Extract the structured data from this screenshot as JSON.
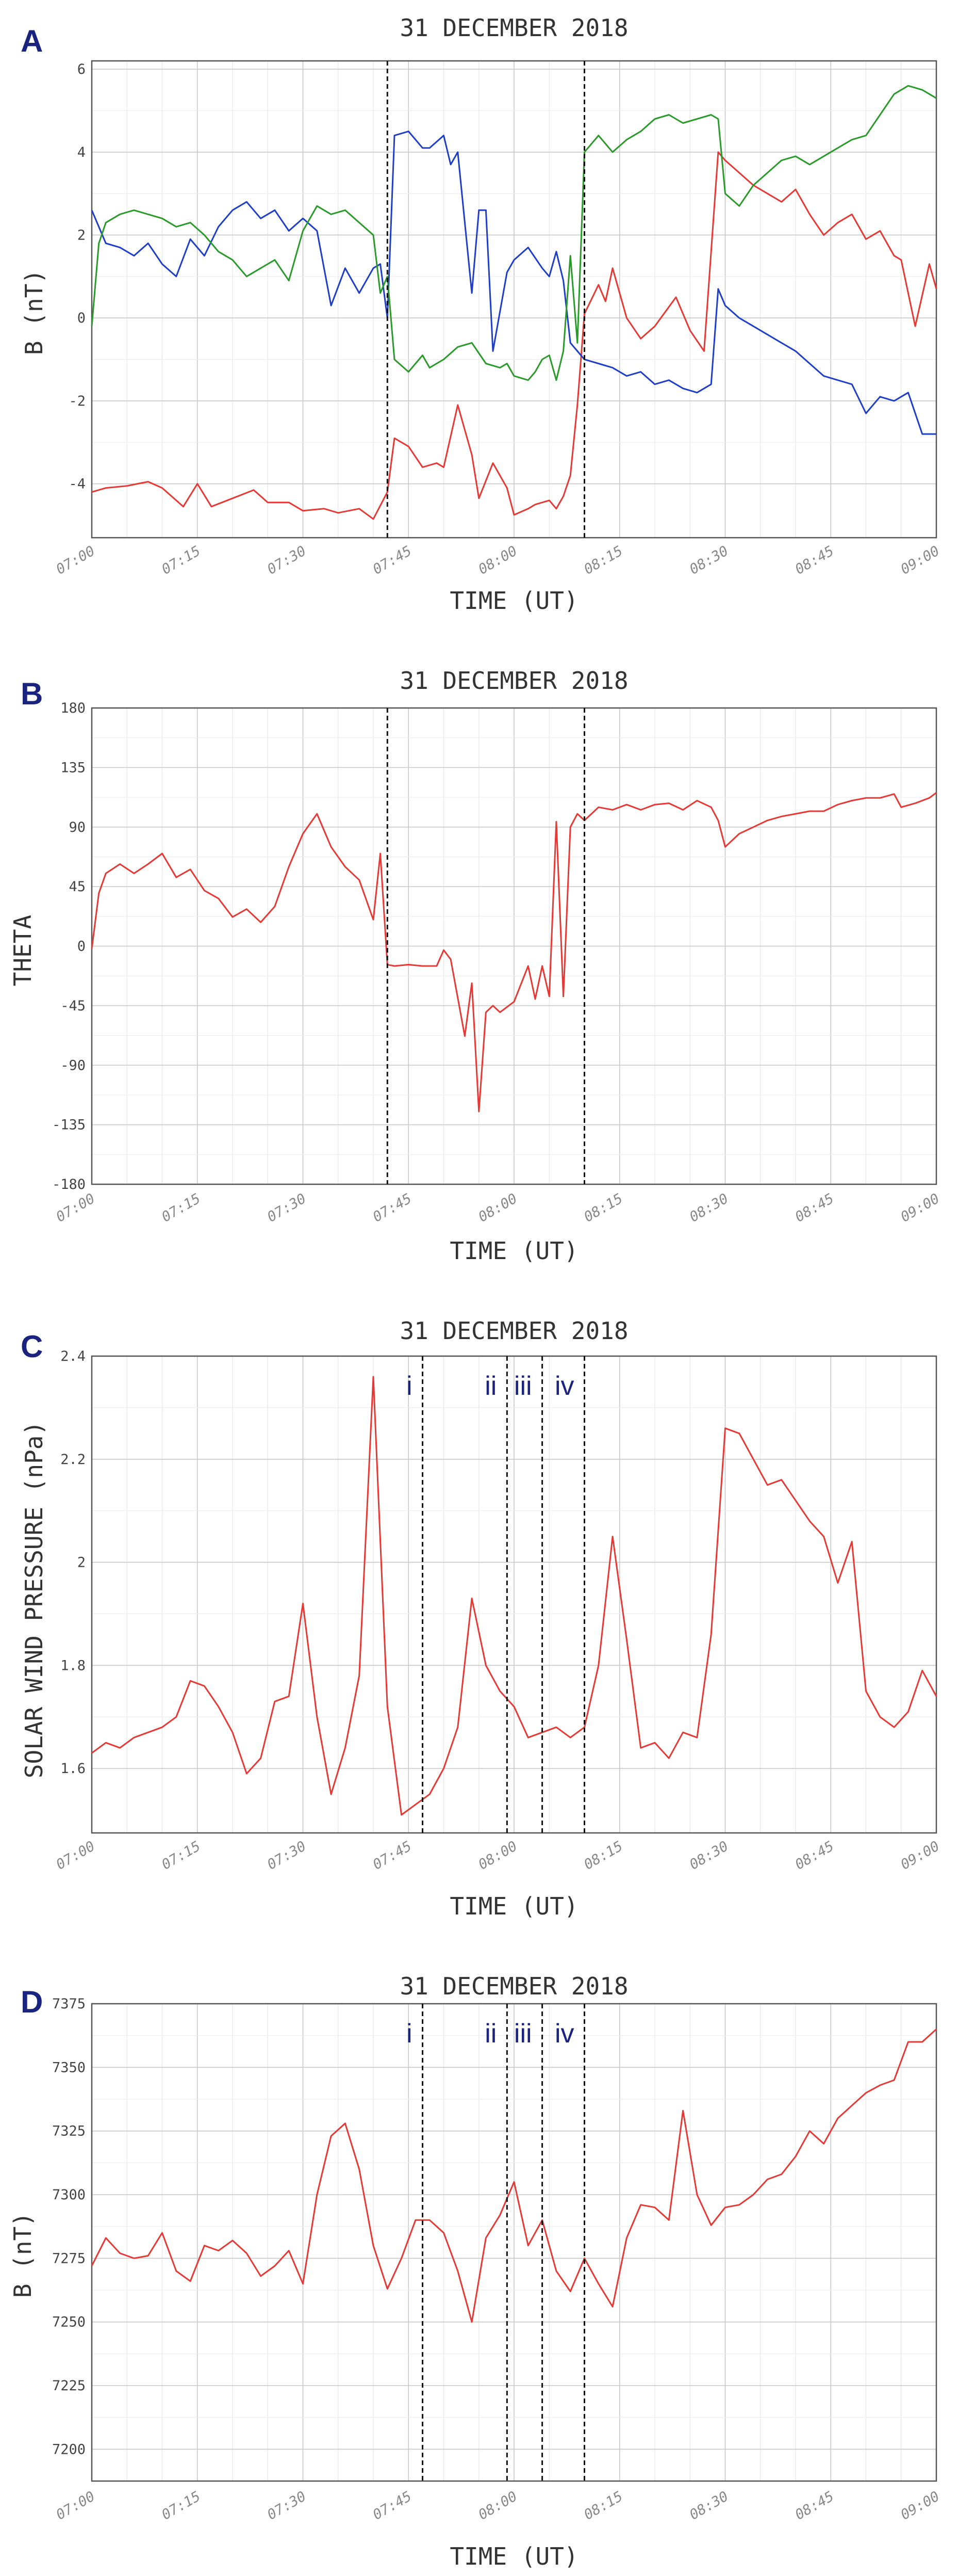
{
  "chart_data": [
    {
      "panel": "A",
      "type": "line",
      "title": "31 DECEMBER 2018",
      "xlabel": "TIME (UT)",
      "ylabel": "B (nT)",
      "xlim": [
        "07:00",
        "09:00"
      ],
      "ylim": [
        -5.3,
        6.2
      ],
      "yticks": [
        -4,
        -2,
        0,
        2,
        4,
        6
      ],
      "xticks": [
        "07:00",
        "07:15",
        "07:30",
        "07:45",
        "08:00",
        "08:15",
        "08:30",
        "08:45",
        "09:00"
      ],
      "grid": true,
      "vlines": [
        "07:42",
        "08:10"
      ],
      "series": [
        {
          "color": "#e53935",
          "x": [
            "07:00",
            "07:02",
            "07:05",
            "07:08",
            "07:10",
            "07:13",
            "07:15",
            "07:17",
            "07:20",
            "07:23",
            "07:25",
            "07:28",
            "07:30",
            "07:33",
            "07:35",
            "07:38",
            "07:40",
            "07:42",
            "07:43",
            "07:45",
            "07:47",
            "07:49",
            "07:50",
            "07:52",
            "07:54",
            "07:55",
            "07:57",
            "07:59",
            "08:00",
            "08:02",
            "08:03",
            "08:05",
            "08:06",
            "08:07",
            "08:08",
            "08:09",
            "08:10",
            "08:12",
            "08:13",
            "08:14",
            "08:16",
            "08:18",
            "08:20",
            "08:23",
            "08:25",
            "08:27",
            "08:29",
            "08:30",
            "08:32",
            "08:34",
            "08:36",
            "08:38",
            "08:40",
            "08:42",
            "08:44",
            "08:46",
            "08:48",
            "08:50",
            "08:52",
            "08:54",
            "08:55",
            "08:57",
            "08:59",
            "09:00"
          ],
          "values": [
            -4.2,
            -4.1,
            -4.05,
            -3.95,
            -4.1,
            -4.55,
            -4.0,
            -4.55,
            -4.35,
            -4.15,
            -4.45,
            -4.45,
            -4.65,
            -4.6,
            -4.7,
            -4.6,
            -4.85,
            -4.2,
            -2.9,
            -3.1,
            -3.6,
            -3.5,
            -3.6,
            -2.1,
            -3.3,
            -4.35,
            -3.5,
            -4.1,
            -4.75,
            -4.6,
            -4.5,
            -4.4,
            -4.6,
            -4.3,
            -3.8,
            -2.1,
            0.1,
            0.8,
            0.4,
            1.2,
            0.0,
            -0.5,
            -0.2,
            0.5,
            -0.3,
            -0.8,
            4.0,
            3.8,
            3.5,
            3.2,
            3.0,
            2.8,
            3.1,
            2.5,
            2.0,
            2.3,
            2.5,
            1.9,
            2.1,
            1.5,
            1.4,
            -0.2,
            1.3,
            0.7
          ]
        },
        {
          "color": "#1e3ec8",
          "x": [
            "07:00",
            "07:02",
            "07:04",
            "07:06",
            "07:08",
            "07:10",
            "07:12",
            "07:14",
            "07:16",
            "07:18",
            "07:20",
            "07:22",
            "07:24",
            "07:26",
            "07:28",
            "07:30",
            "07:32",
            "07:34",
            "07:36",
            "07:38",
            "07:40",
            "07:41",
            "07:42",
            "07:43",
            "07:45",
            "07:47",
            "07:48",
            "07:50",
            "07:51",
            "07:52",
            "07:54",
            "07:55",
            "07:56",
            "07:57",
            "07:59",
            "08:00",
            "08:02",
            "08:04",
            "08:05",
            "08:06",
            "08:07",
            "08:08",
            "08:10",
            "08:12",
            "08:14",
            "08:16",
            "08:18",
            "08:20",
            "08:22",
            "08:24",
            "08:26",
            "08:28",
            "08:29",
            "08:30",
            "08:32",
            "08:34",
            "08:36",
            "08:38",
            "08:40",
            "08:42",
            "08:44",
            "08:46",
            "08:48",
            "08:50",
            "08:52",
            "08:54",
            "08:56",
            "08:58",
            "09:00"
          ],
          "values": [
            2.6,
            1.8,
            1.7,
            1.5,
            1.8,
            1.3,
            1.0,
            1.9,
            1.5,
            2.2,
            2.6,
            2.8,
            2.4,
            2.6,
            2.1,
            2.4,
            2.1,
            0.3,
            1.2,
            0.6,
            1.2,
            1.3,
            0.0,
            4.4,
            4.5,
            4.1,
            4.1,
            4.4,
            3.7,
            4.0,
            0.6,
            2.6,
            2.6,
            -0.8,
            1.1,
            1.4,
            1.7,
            1.2,
            1.0,
            1.6,
            0.9,
            -0.6,
            -1.0,
            -1.1,
            -1.2,
            -1.4,
            -1.3,
            -1.6,
            -1.5,
            -1.7,
            -1.8,
            -1.6,
            0.7,
            0.3,
            0.0,
            -0.2,
            -0.4,
            -0.6,
            -0.8,
            -1.1,
            -1.4,
            -1.5,
            -1.6,
            -2.3,
            -1.9,
            -2.0,
            -1.8,
            -2.8,
            -2.8
          ]
        },
        {
          "color": "#2a9a2a",
          "x": [
            "07:00",
            "07:01",
            "07:02",
            "07:04",
            "07:06",
            "07:08",
            "07:10",
            "07:12",
            "07:14",
            "07:16",
            "07:18",
            "07:20",
            "07:22",
            "07:24",
            "07:26",
            "07:28",
            "07:30",
            "07:32",
            "07:34",
            "07:36",
            "07:38",
            "07:40",
            "07:41",
            "07:42",
            "07:43",
            "07:45",
            "07:47",
            "07:48",
            "07:50",
            "07:52",
            "07:54",
            "07:56",
            "07:58",
            "07:59",
            "08:00",
            "08:02",
            "08:03",
            "08:04",
            "08:05",
            "08:06",
            "08:07",
            "08:08",
            "08:09",
            "08:10",
            "08:12",
            "08:14",
            "08:16",
            "08:18",
            "08:20",
            "08:22",
            "08:24",
            "08:26",
            "08:28",
            "08:29",
            "08:30",
            "08:32",
            "08:34",
            "08:36",
            "08:38",
            "08:40",
            "08:42",
            "08:44",
            "08:46",
            "08:48",
            "08:50",
            "08:52",
            "08:54",
            "08:56",
            "08:58",
            "09:00"
          ],
          "values": [
            -0.2,
            1.8,
            2.3,
            2.5,
            2.6,
            2.5,
            2.4,
            2.2,
            2.3,
            2.0,
            1.6,
            1.4,
            1.0,
            1.2,
            1.4,
            0.9,
            2.1,
            2.7,
            2.5,
            2.6,
            2.3,
            2.0,
            0.6,
            1.0,
            -1.0,
            -1.3,
            -0.9,
            -1.2,
            -1.0,
            -0.7,
            -0.6,
            -1.1,
            -1.2,
            -1.1,
            -1.4,
            -1.5,
            -1.3,
            -1.0,
            -0.9,
            -1.5,
            -0.8,
            1.5,
            -0.6,
            4.0,
            4.4,
            4.0,
            4.3,
            4.5,
            4.8,
            4.9,
            4.7,
            4.8,
            4.9,
            4.8,
            3.0,
            2.7,
            3.2,
            3.5,
            3.8,
            3.9,
            3.7,
            3.9,
            4.1,
            4.3,
            4.4,
            4.9,
            5.4,
            5.6,
            5.5,
            5.3
          ]
        }
      ]
    },
    {
      "panel": "B",
      "type": "line",
      "title": "31 DECEMBER 2018",
      "xlabel": "TIME (UT)",
      "ylabel": "THETA",
      "xlim": [
        "07:00",
        "09:00"
      ],
      "ylim": [
        -180,
        180
      ],
      "yticks": [
        -180,
        -135,
        -90,
        -45,
        0,
        45,
        90,
        135,
        180
      ],
      "xticks": [
        "07:00",
        "07:15",
        "07:30",
        "07:45",
        "08:00",
        "08:15",
        "08:30",
        "08:45",
        "09:00"
      ],
      "grid": true,
      "vlines": [
        "07:42",
        "08:10"
      ],
      "series": [
        {
          "color": "#e53935",
          "x": [
            "07:00",
            "07:01",
            "07:02",
            "07:04",
            "07:06",
            "07:08",
            "07:10",
            "07:12",
            "07:14",
            "07:16",
            "07:18",
            "07:20",
            "07:22",
            "07:24",
            "07:26",
            "07:28",
            "07:30",
            "07:32",
            "07:34",
            "07:36",
            "07:38",
            "07:40",
            "07:41",
            "07:42",
            "07:43",
            "07:45",
            "07:47",
            "07:49",
            "07:50",
            "07:51",
            "07:53",
            "07:54",
            "07:55",
            "07:56",
            "07:57",
            "07:58",
            "08:00",
            "08:02",
            "08:03",
            "08:04",
            "08:05",
            "08:06",
            "08:07",
            "08:08",
            "08:09",
            "08:10",
            "08:11",
            "08:12",
            "08:14",
            "08:16",
            "08:18",
            "08:20",
            "08:22",
            "08:24",
            "08:26",
            "08:28",
            "08:29",
            "08:30",
            "08:32",
            "08:34",
            "08:36",
            "08:38",
            "08:40",
            "08:42",
            "08:44",
            "08:46",
            "08:48",
            "08:50",
            "08:52",
            "08:54",
            "08:55",
            "08:57",
            "08:59",
            "09:00"
          ],
          "values": [
            -2,
            40,
            55,
            62,
            55,
            62,
            70,
            52,
            58,
            42,
            36,
            22,
            28,
            18,
            30,
            60,
            85,
            100,
            75,
            60,
            50,
            20,
            70,
            -14,
            -15,
            -14,
            -15,
            -15,
            -3,
            -10,
            -68,
            -28,
            -125,
            -50,
            -45,
            -50,
            -42,
            -15,
            -40,
            -15,
            -38,
            94,
            -38,
            90,
            100,
            95,
            100,
            105,
            103,
            107,
            103,
            107,
            108,
            103,
            110,
            105,
            95,
            75,
            85,
            90,
            95,
            98,
            100,
            102,
            102,
            107,
            110,
            112,
            112,
            115,
            105,
            108,
            112,
            116
          ]
        }
      ]
    },
    {
      "panel": "C",
      "type": "line",
      "title": "31 DECEMBER 2018",
      "xlabel": "TIME (UT)",
      "ylabel": "SOLAR WIND PRESSURE (nPa)",
      "xlim": [
        "07:00",
        "09:00"
      ],
      "ylim": [
        1.475,
        2.4
      ],
      "yticks": [
        1.6,
        1.8,
        2.0,
        2.2,
        2.4
      ],
      "xticks": [
        "07:00",
        "07:15",
        "07:30",
        "07:45",
        "08:00",
        "08:15",
        "08:30",
        "08:45",
        "09:00"
      ],
      "grid": true,
      "vlines": [
        "07:47",
        "07:59",
        "08:04",
        "08:10"
      ],
      "markers": [
        "i",
        "ii",
        "iii",
        "iv"
      ],
      "series": [
        {
          "color": "#e53935",
          "x": [
            "07:00",
            "07:02",
            "07:04",
            "07:06",
            "07:08",
            "07:10",
            "07:12",
            "07:14",
            "07:16",
            "07:18",
            "07:20",
            "07:22",
            "07:24",
            "07:26",
            "07:28",
            "07:30",
            "07:32",
            "07:34",
            "07:36",
            "07:38",
            "07:40",
            "07:42",
            "07:44",
            "07:46",
            "07:48",
            "07:50",
            "07:52",
            "07:54",
            "07:56",
            "07:58",
            "08:00",
            "08:02",
            "08:04",
            "08:06",
            "08:08",
            "08:10",
            "08:12",
            "08:14",
            "08:16",
            "08:18",
            "08:20",
            "08:22",
            "08:24",
            "08:26",
            "08:28",
            "08:30",
            "08:32",
            "08:34",
            "08:36",
            "08:38",
            "08:40",
            "08:42",
            "08:44",
            "08:46",
            "08:48",
            "08:50",
            "08:52",
            "08:54",
            "08:56",
            "08:58",
            "09:00"
          ],
          "values": [
            1.63,
            1.65,
            1.64,
            1.66,
            1.67,
            1.68,
            1.7,
            1.77,
            1.76,
            1.72,
            1.67,
            1.59,
            1.62,
            1.73,
            1.74,
            1.92,
            1.7,
            1.55,
            1.64,
            1.78,
            2.36,
            1.72,
            1.51,
            1.53,
            1.55,
            1.6,
            1.68,
            1.93,
            1.8,
            1.75,
            1.72,
            1.66,
            1.67,
            1.68,
            1.66,
            1.68,
            1.8,
            2.05,
            1.85,
            1.64,
            1.65,
            1.62,
            1.67,
            1.66,
            1.86,
            2.26,
            2.25,
            2.2,
            2.15,
            2.16,
            2.12,
            2.08,
            2.05,
            1.96,
            2.04,
            1.75,
            1.7,
            1.68,
            1.71,
            1.79,
            1.74
          ]
        }
      ]
    },
    {
      "panel": "D",
      "type": "line",
      "title": "31 DECEMBER 2018",
      "xlabel": "TIME (UT)",
      "ylabel": "B (nT)",
      "xlim": [
        "07:00",
        "09:00"
      ],
      "ylim": [
        7187.5,
        7375
      ],
      "yticks": [
        7200,
        7225,
        7250,
        7275,
        7300,
        7325,
        7350,
        7375
      ],
      "xticks": [
        "07:00",
        "07:15",
        "07:30",
        "07:45",
        "08:00",
        "08:15",
        "08:30",
        "08:45",
        "09:00"
      ],
      "grid": true,
      "vlines": [
        "07:47",
        "07:59",
        "08:04",
        "08:10"
      ],
      "markers": [
        "i",
        "ii",
        "iii",
        "iv"
      ],
      "series": [
        {
          "color": "#e53935",
          "x": [
            "07:00",
            "07:02",
            "07:04",
            "07:06",
            "07:08",
            "07:10",
            "07:12",
            "07:14",
            "07:16",
            "07:18",
            "07:20",
            "07:22",
            "07:24",
            "07:26",
            "07:28",
            "07:30",
            "07:32",
            "07:34",
            "07:36",
            "07:38",
            "07:40",
            "07:42",
            "07:44",
            "07:46",
            "07:48",
            "07:50",
            "07:52",
            "07:54",
            "07:56",
            "07:58",
            "08:00",
            "08:02",
            "08:04",
            "08:06",
            "08:08",
            "08:10",
            "08:12",
            "08:14",
            "08:16",
            "08:18",
            "08:20",
            "08:22",
            "08:24",
            "08:26",
            "08:28",
            "08:30",
            "08:32",
            "08:34",
            "08:36",
            "08:38",
            "08:40",
            "08:42",
            "08:44",
            "08:46",
            "08:48",
            "08:50",
            "08:52",
            "08:54",
            "08:56",
            "08:58",
            "09:00"
          ],
          "values": [
            7272,
            7283,
            7277,
            7275,
            7276,
            7285,
            7270,
            7266,
            7280,
            7278,
            7282,
            7277,
            7268,
            7272,
            7278,
            7265,
            7300,
            7323,
            7328,
            7310,
            7280,
            7263,
            7275,
            7290,
            7290,
            7285,
            7270,
            7250,
            7283,
            7292,
            7305,
            7280,
            7290,
            7270,
            7262,
            7275,
            7265,
            7256,
            7283,
            7296,
            7295,
            7290,
            7333,
            7300,
            7288,
            7295,
            7296,
            7300,
            7306,
            7308,
            7315,
            7325,
            7320,
            7330,
            7335,
            7340,
            7343,
            7345,
            7360,
            7360,
            7365
          ]
        }
      ]
    }
  ],
  "panel_letters": [
    "A",
    "B",
    "C",
    "D"
  ]
}
